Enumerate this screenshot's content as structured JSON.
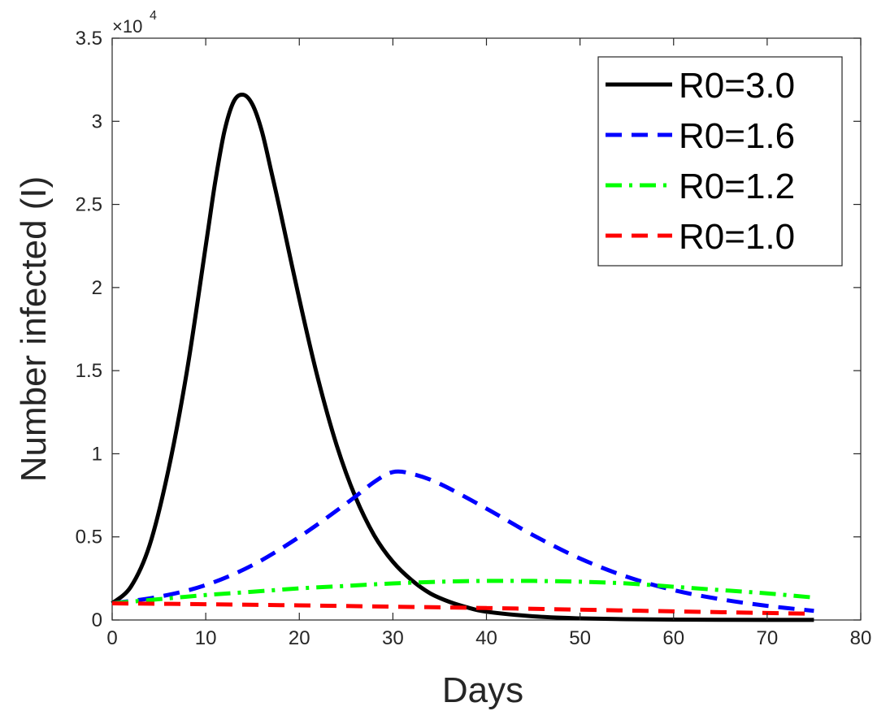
{
  "chart_data": {
    "type": "line",
    "title": "",
    "xlabel": "Days",
    "ylabel": "Number infected (I)",
    "xlim": [
      0,
      80
    ],
    "ylim": [
      0,
      35000
    ],
    "y_exponent_label": "×10",
    "y_exponent_power": "4",
    "x_ticks": [
      0,
      10,
      20,
      30,
      40,
      50,
      60,
      70,
      80
    ],
    "x_tick_labels": [
      "0",
      "10",
      "20",
      "30",
      "40",
      "50",
      "60",
      "70",
      "80"
    ],
    "y_ticks": [
      0,
      5000,
      10000,
      15000,
      20000,
      25000,
      30000,
      35000
    ],
    "y_tick_labels": [
      "0",
      "0.5",
      "1",
      "1.5",
      "2",
      "2.5",
      "3",
      "3.5"
    ],
    "grid": false,
    "legend_position": "top-right",
    "series": [
      {
        "name": "R0=3.0",
        "color": "#000000",
        "style": "solid",
        "x": [
          0,
          2,
          4,
          6,
          8,
          10,
          11,
          12,
          13,
          14,
          15,
          16,
          17,
          18,
          20,
          22,
          24,
          26,
          28,
          30,
          32,
          34,
          36,
          38,
          40,
          45,
          50,
          55,
          60,
          65,
          70,
          75
        ],
        "y": [
          1000,
          2000,
          4500,
          9000,
          15000,
          22500,
          26300,
          29400,
          31200,
          31600,
          31000,
          29400,
          27000,
          24500,
          19300,
          14500,
          10500,
          7400,
          5100,
          3500,
          2400,
          1600,
          1100,
          750,
          500,
          220,
          100,
          50,
          25,
          12,
          6,
          3
        ]
      },
      {
        "name": "R0=1.6",
        "color": "#0000ff",
        "style": "dashed",
        "x": [
          0,
          5,
          10,
          15,
          20,
          25,
          28,
          30,
          32,
          35,
          40,
          45,
          50,
          55,
          60,
          65,
          70,
          75
        ],
        "y": [
          1000,
          1400,
          2100,
          3300,
          5000,
          7000,
          8300,
          8900,
          8800,
          8200,
          6700,
          5100,
          3700,
          2600,
          1800,
          1250,
          850,
          550
        ]
      },
      {
        "name": "R0=1.2",
        "color": "#00ff00",
        "style": "dashdot",
        "x": [
          0,
          5,
          10,
          15,
          20,
          25,
          30,
          35,
          40,
          45,
          50,
          55,
          60,
          65,
          70,
          75
        ],
        "y": [
          1000,
          1250,
          1500,
          1700,
          1900,
          2050,
          2200,
          2300,
          2350,
          2350,
          2300,
          2200,
          2000,
          1800,
          1600,
          1350
        ]
      },
      {
        "name": "R0=1.0",
        "color": "#ff0000",
        "style": "dashed",
        "x": [
          0,
          10,
          20,
          30,
          40,
          50,
          60,
          70,
          75
        ],
        "y": [
          1000,
          950,
          880,
          800,
          720,
          620,
          520,
          420,
          380
        ]
      }
    ]
  }
}
